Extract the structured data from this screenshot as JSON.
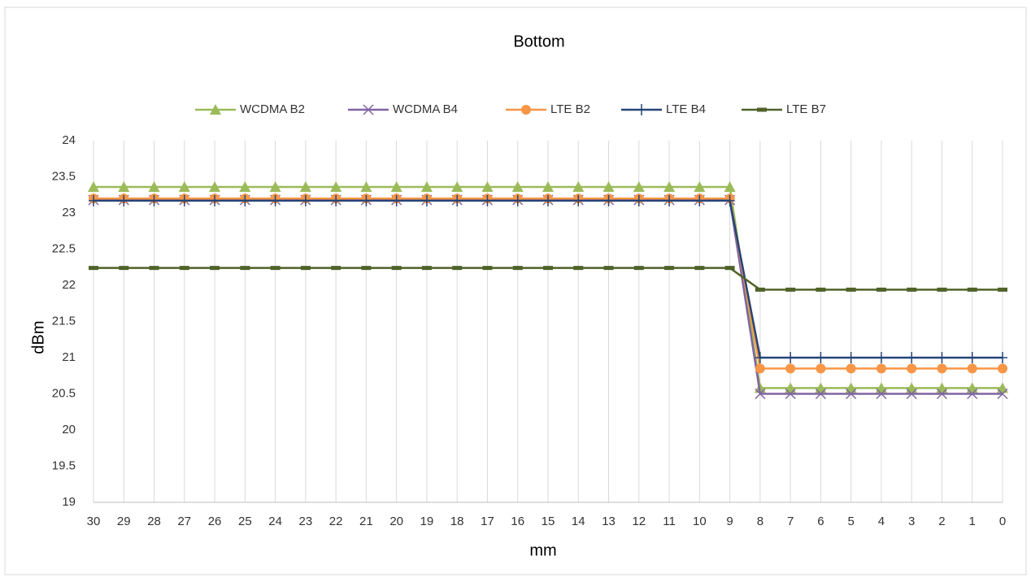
{
  "chart_data": {
    "type": "line",
    "title": "Bottom",
    "x_label": "mm",
    "y_label": "dBm",
    "categories": [
      "30",
      "29",
      "28",
      "27",
      "26",
      "25",
      "24",
      "23",
      "22",
      "21",
      "20",
      "19",
      "18",
      "17",
      "16",
      "15",
      "14",
      "13",
      "12",
      "11",
      "10",
      "9",
      "8",
      "7",
      "6",
      "5",
      "4",
      "3",
      "2",
      "1",
      "0"
    ],
    "series": [
      {
        "name": "WCDMA B2",
        "color": "#9bbb59",
        "marker": "triangle",
        "values": [
          23.36,
          23.36,
          23.36,
          23.36,
          23.36,
          23.36,
          23.36,
          23.36,
          23.36,
          23.36,
          23.36,
          23.36,
          23.36,
          23.36,
          23.36,
          23.36,
          23.36,
          23.36,
          23.36,
          23.36,
          23.36,
          23.36,
          20.58,
          20.58,
          20.58,
          20.58,
          20.58,
          20.58,
          20.58,
          20.58,
          20.58
        ]
      },
      {
        "name": "WCDMA B4",
        "color": "#8064a2",
        "marker": "x",
        "values": [
          23.18,
          23.18,
          23.18,
          23.18,
          23.18,
          23.18,
          23.18,
          23.18,
          23.18,
          23.18,
          23.18,
          23.18,
          23.18,
          23.18,
          23.18,
          23.18,
          23.18,
          23.18,
          23.18,
          23.18,
          23.18,
          23.18,
          20.5,
          20.5,
          20.5,
          20.5,
          20.5,
          20.5,
          20.5,
          20.5,
          20.5
        ]
      },
      {
        "name": "LTE B2",
        "color": "#f79646",
        "marker": "circle",
        "values": [
          23.2,
          23.2,
          23.2,
          23.2,
          23.2,
          23.2,
          23.2,
          23.2,
          23.2,
          23.2,
          23.2,
          23.2,
          23.2,
          23.2,
          23.2,
          23.2,
          23.2,
          23.2,
          23.2,
          23.2,
          23.2,
          23.2,
          20.85,
          20.85,
          20.85,
          20.85,
          20.85,
          20.85,
          20.85,
          20.85,
          20.85
        ]
      },
      {
        "name": "LTE B4",
        "color": "#264478",
        "marker": "plus",
        "values": [
          23.17,
          23.17,
          23.17,
          23.17,
          23.17,
          23.17,
          23.17,
          23.17,
          23.17,
          23.17,
          23.17,
          23.17,
          23.17,
          23.17,
          23.17,
          23.17,
          23.17,
          23.17,
          23.17,
          23.17,
          23.17,
          23.17,
          21.0,
          21.0,
          21.0,
          21.0,
          21.0,
          21.0,
          21.0,
          21.0,
          21.0
        ]
      },
      {
        "name": "LTE B7",
        "color": "#4f6228",
        "marker": "dash",
        "values": [
          22.24,
          22.24,
          22.24,
          22.24,
          22.24,
          22.24,
          22.24,
          22.24,
          22.24,
          22.24,
          22.24,
          22.24,
          22.24,
          22.24,
          22.24,
          22.24,
          22.24,
          22.24,
          22.24,
          22.24,
          22.24,
          22.24,
          21.94,
          21.94,
          21.94,
          21.94,
          21.94,
          21.94,
          21.94,
          21.94,
          21.94
        ]
      }
    ],
    "ylim": [
      19,
      24
    ],
    "yticks": [
      19,
      19.5,
      20,
      20.5,
      21,
      21.5,
      22,
      22.5,
      23,
      23.5,
      24
    ],
    "grid": "vertical",
    "legend": "top"
  }
}
